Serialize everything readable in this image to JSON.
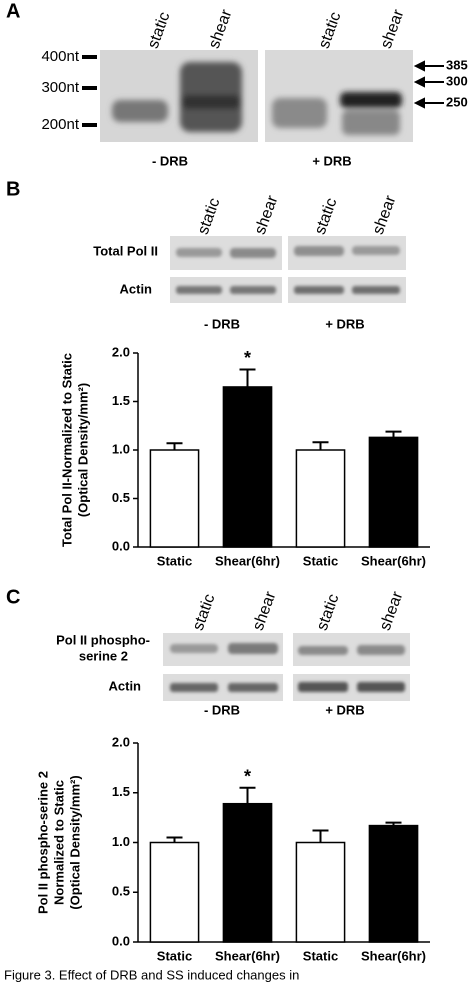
{
  "panels": {
    "a": {
      "label": "A",
      "lanes": [
        "static",
        "shear",
        "static",
        "shear"
      ],
      "markers_left": [
        "400nt",
        "300nt",
        "200nt"
      ],
      "markers_right": [
        "385",
        "300",
        "250"
      ],
      "groups": [
        "- DRB",
        "+ DRB"
      ]
    },
    "b": {
      "label": "B",
      "lanes": [
        "static",
        "shear",
        "static",
        "shear"
      ],
      "rows": [
        "Total Pol II",
        "Actin"
      ],
      "groups": [
        "- DRB",
        "+ DRB"
      ]
    },
    "c": {
      "label": "C",
      "lanes": [
        "static",
        "shear",
        "static",
        "shear"
      ],
      "rows": [
        "Pol II phospho-",
        "serine 2",
        "Actin"
      ],
      "groups": [
        "- DRB",
        "+ DRB"
      ]
    }
  },
  "chart_data": [
    {
      "type": "bar",
      "ylabel": [
        "Total Pol II-Normalized to Static",
        "(Optical Density/mm²)"
      ],
      "categories": [
        "Static",
        "Shear(6hr)",
        "Static",
        "Shear(6hr)"
      ],
      "values": [
        1.0,
        1.65,
        1.0,
        1.13
      ],
      "errors": [
        0.07,
        0.18,
        0.08,
        0.06
      ],
      "colors": [
        "#ffffff",
        "#000000",
        "#ffffff",
        "#000000"
      ],
      "annotation": "*",
      "ylim": [
        0,
        2
      ],
      "yticks": [
        {
          "value": 0,
          "label": "0.0"
        },
        0.5,
        {
          "value": 1,
          "label": "1.0"
        },
        1.5,
        {
          "value": 2,
          "label": "2.0"
        }
      ]
    },
    {
      "type": "bar",
      "ylabel": [
        "Pol II phospho-serine 2",
        "Normalized to Static",
        "(Optical Density/mm²)"
      ],
      "categories": [
        "Static",
        "Shear(6hr)",
        "Static",
        "Shear(6hr)"
      ],
      "values": [
        1.0,
        1.39,
        1.0,
        1.17
      ],
      "errors": [
        0.05,
        0.16,
        0.12,
        0.03
      ],
      "colors": [
        "#ffffff",
        "#000000",
        "#ffffff",
        "#000000"
      ],
      "annotation": "*",
      "ylim": [
        0,
        2
      ],
      "yticks": [
        {
          "value": 0,
          "label": "0.0"
        },
        0.5,
        {
          "value": 1,
          "label": "1.0"
        },
        1.5,
        {
          "value": 2,
          "label": "2.0"
        }
      ]
    }
  ],
  "caption": "Figure 3. Effect of DRB and SS induced changes in"
}
